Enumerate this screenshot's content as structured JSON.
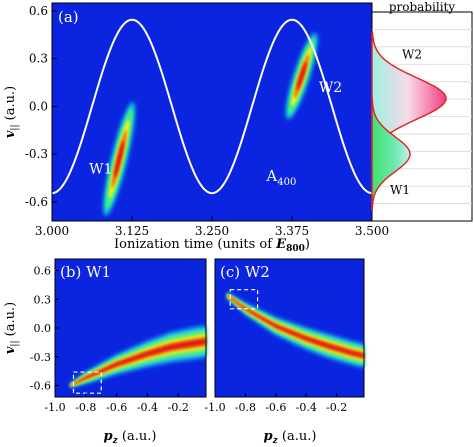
{
  "colors": {
    "background": "#0a24e0",
    "map_low": "#0a24e0",
    "map_mid": "#18c8e8",
    "map_high": "#e01810",
    "curve": "#ffffff",
    "panel_label": "#ffffff",
    "prob_w2_line": "#e02020",
    "prob_w1_fill": "#30d070",
    "prob_w2_fill": "#f07090"
  },
  "chart_data": [
    {
      "id": "a",
      "type": "heatmap",
      "panel_label": "(a)",
      "xlabel_prefix": "Ionization time (units of ",
      "xlabel_math": "E",
      "xlabel_sub": "800",
      "xlabel_suffix": ")",
      "ylabel_main": "v",
      "ylabel_sub": "||",
      "ylabel_unit": " (a.u.)",
      "xlim": [
        3.0,
        3.5
      ],
      "ylim": [
        -0.72,
        0.65
      ],
      "xticks": [
        "3.000",
        "3.125",
        "3.250",
        "3.375",
        "3.500"
      ],
      "xtick_values": [
        3.0,
        3.125,
        3.25,
        3.375,
        3.5
      ],
      "yticks": [
        "0.6",
        "0.3",
        "0.0",
        "-0.3",
        "-0.6"
      ],
      "ytick_values": [
        0.6,
        0.3,
        0.0,
        -0.3,
        -0.6
      ],
      "curve": {
        "label": "A",
        "label_sub": "400",
        "amplitude": 0.545,
        "center": 3.25,
        "period": 0.25,
        "label_x": 3.335,
        "label_y": -0.47
      },
      "blobs": [
        {
          "name": "W1",
          "x0": 3.085,
          "y0": -0.66,
          "x1": 3.125,
          "y1": 0.0,
          "label_x": 3.058,
          "label_y": -0.42
        },
        {
          "name": "W2",
          "x0": 3.37,
          "y0": -0.06,
          "x1": 3.41,
          "y1": 0.44,
          "label_x": 3.417,
          "label_y": 0.09
        }
      ]
    },
    {
      "id": "prob",
      "type": "area",
      "title": "probability",
      "series": [
        {
          "name": "W2",
          "center": 0.05,
          "width": 0.13,
          "label_y": 0.3
        },
        {
          "name": "W1",
          "center": -0.3,
          "width": 0.11,
          "label_y": -0.55
        }
      ]
    },
    {
      "id": "b",
      "type": "heatmap",
      "panel_label": "(b) W1",
      "xlabel_main": "p",
      "xlabel_sub": "z",
      "xlabel_unit": " (a.u.)",
      "ylabel_main": "v",
      "ylabel_sub": "||",
      "ylabel_unit": " (a.u.)",
      "xlim": [
        -1.0,
        -0.02
      ],
      "ylim": [
        -0.72,
        0.72
      ],
      "xticks": [
        "-1.0",
        "-0.8",
        "-0.6",
        "-0.4",
        "-0.2"
      ],
      "xtick_values": [
        -1.0,
        -0.8,
        -0.6,
        -0.4,
        -0.2
      ],
      "yticks": [
        "0.6",
        "0.3",
        "0.0",
        "-0.3",
        "-0.6"
      ],
      "ytick_values": [
        0.6,
        0.3,
        0.0,
        -0.3,
        -0.6
      ],
      "dashed_box": [
        -0.88,
        -0.68,
        -0.7,
        -0.46
      ]
    },
    {
      "id": "c",
      "type": "heatmap",
      "panel_label": "(c) W2",
      "xlabel_main": "p",
      "xlabel_sub": "z",
      "xlabel_unit": " (a.u.)",
      "xlim": [
        -1.0,
        -0.02
      ],
      "ylim": [
        -0.72,
        0.72
      ],
      "xticks": [
        "-1.0",
        "-0.8",
        "-0.6",
        "-0.4",
        "-0.2"
      ],
      "xtick_values": [
        -1.0,
        -0.8,
        -0.6,
        -0.4,
        -0.2
      ],
      "dashed_box": [
        -0.9,
        0.2,
        -0.72,
        0.4
      ]
    }
  ]
}
